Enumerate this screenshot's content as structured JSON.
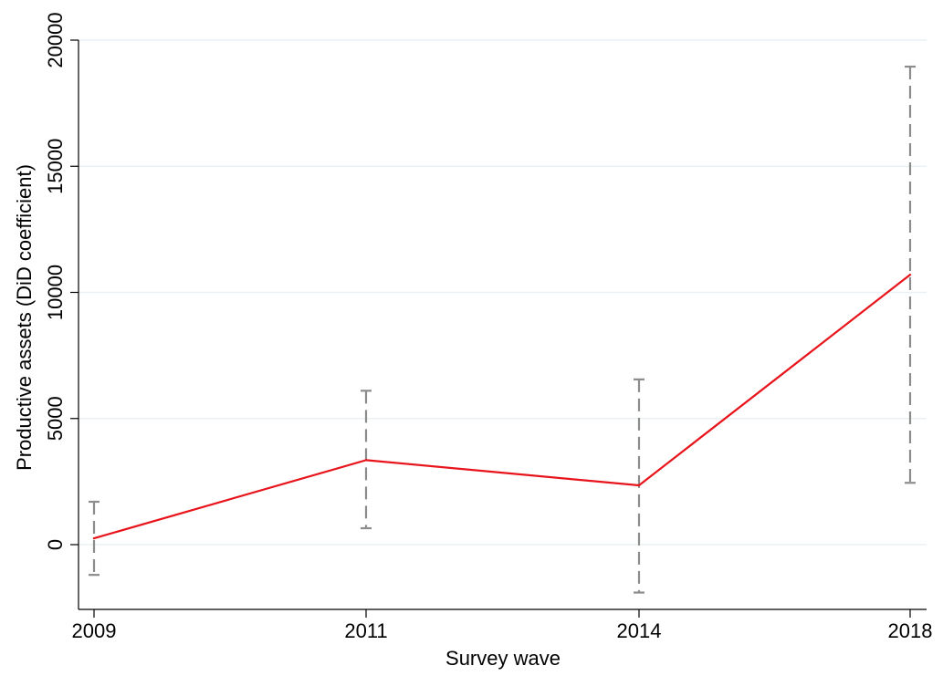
{
  "chart_data": {
    "type": "line",
    "title": "",
    "xlabel": "Survey wave",
    "ylabel": "Productive assets (DiD coefficient)",
    "categories": [
      "2009",
      "2011",
      "2014",
      "2018"
    ],
    "series": [
      {
        "values": [
          250,
          3350,
          2350,
          10700
        ],
        "ci_low": [
          -1200,
          650,
          -1900,
          2450
        ],
        "ci_high": [
          1700,
          6100,
          6550,
          18950
        ]
      }
    ],
    "y_ticks": [
      0,
      5000,
      10000,
      15000,
      20000
    ],
    "y_tick_labels": [
      "0",
      "5000",
      "10000",
      "15000",
      "20000"
    ],
    "ylim": [
      -2300,
      20000
    ],
    "grid": "horizontal",
    "legend": "none",
    "colors": {
      "line": "#e8141b",
      "error_bar": "#8c8c8c",
      "grid": "#eaf0f3",
      "axis": "#000000"
    }
  }
}
